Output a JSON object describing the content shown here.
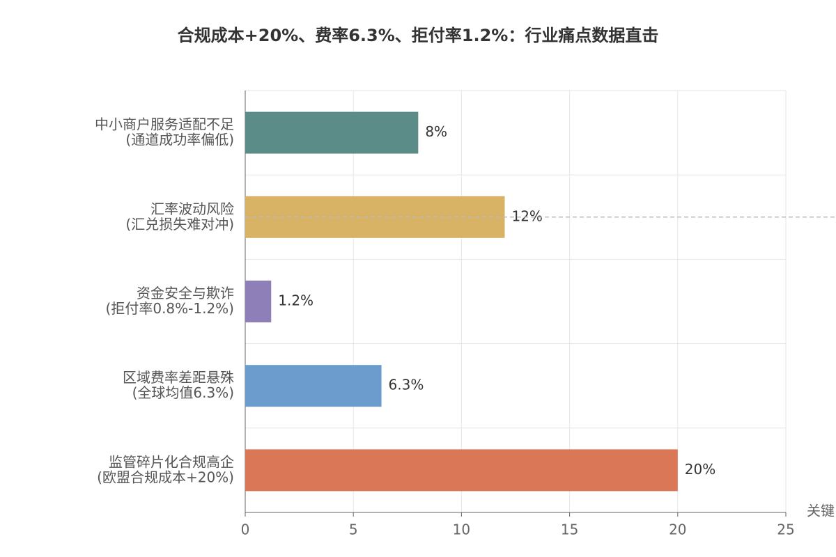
{
  "chart_data": {
    "type": "hbar",
    "title": "合规成本+20%、费率6.3%、拒付率1.2%：行业痛点数据直击",
    "categories": [
      "中小商户服务适配不足\n(通道成功率偏低)",
      "汇率波动风险\n(汇兑损失难对冲)",
      "资金安全与欺诈\n(拒付率0.8%-1.2%)",
      "区域费率差距悬殊\n(全球均值6.3%)",
      "监管碎片化合规高企\n(欧盟合规成本+20%)"
    ],
    "values": [
      8,
      12,
      1.2,
      6.3,
      20
    ],
    "value_labels": [
      "8%",
      "12%",
      "1.2%",
      "6.3%",
      "20%"
    ],
    "colors": [
      "#5b8c88",
      "#d8b365",
      "#8e7fb8",
      "#6b9ccd",
      "#d97757"
    ],
    "xlabel": "关键",
    "xlim": [
      0,
      25
    ],
    "xticks": [
      0,
      5,
      10,
      15,
      20,
      25
    ],
    "grid": true
  }
}
